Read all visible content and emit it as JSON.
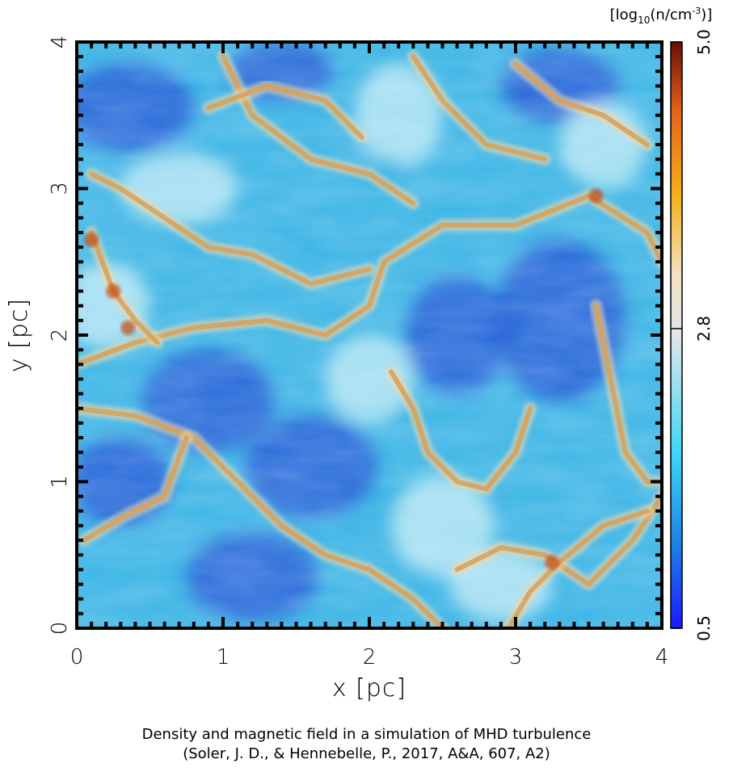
{
  "chart_data": {
    "type": "heatmap",
    "title": "",
    "xlabel": "x [pc]",
    "ylabel": "y [pc]",
    "xlim": [
      0,
      4
    ],
    "ylim": [
      0,
      4
    ],
    "x_ticks": [
      "0",
      "1",
      "2",
      "3",
      "4"
    ],
    "y_ticks": [
      "0",
      "1",
      "2",
      "3",
      "4"
    ],
    "colorbar": {
      "unit_prefix": "[log",
      "unit_sub": "10",
      "unit_mid": "(n/cm",
      "unit_sup": "-3",
      "unit_suffix": ")]",
      "range": [
        0.5,
        5.0
      ],
      "ticks": [
        "0.5",
        "2.8",
        "5.0"
      ],
      "colors": [
        "#1a1aff",
        "#1e7fe6",
        "#3fd6f5",
        "#e0e6ea",
        "#f2e2c4",
        "#f5b01a",
        "#e6641a",
        "#6b0d05"
      ]
    },
    "palette": {
      "low": "#2a62d8",
      "mid": "#3fb6e6",
      "light": "#b8e8f5",
      "filament": "#d9a25a",
      "filament_light": "#f0d6a8",
      "dense": "#c2511e"
    }
  },
  "caption": {
    "line1": "Density and magnetic field in a simulation of MHD turbulence",
    "line2": "(Soler, J. D., & Hennebelle, P., 2017, A&A, 607, A2)"
  }
}
